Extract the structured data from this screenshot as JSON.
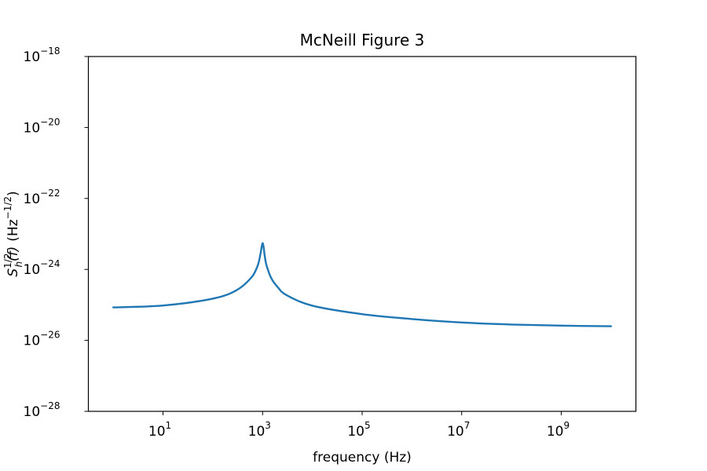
{
  "chart_data": {
    "type": "line",
    "title": "McNeill Figure 3",
    "xlabel": "frequency (Hz)",
    "ylabel_base": "S",
    "ylabel_sub": "h",
    "ylabel_sup": "1/2",
    "ylabel_func": "(f)",
    "ylabel_unit_prefix": "(Hz",
    "ylabel_unit_sup": "−1/2",
    "ylabel_unit_suffix": ")",
    "x_scale": "log",
    "y_scale": "log",
    "xlim_log10": [
      -0.5,
      10.5
    ],
    "ylim_log10": [
      -28,
      -18
    ],
    "x_ticks_log10": [
      1,
      3,
      5,
      7,
      9
    ],
    "y_ticks_log10": [
      -28,
      -26,
      -24,
      -22,
      -20,
      -18
    ],
    "tick_base": "10",
    "grid": false,
    "line_color": "#1f77b4",
    "series": [
      {
        "x": [
          1,
          10,
          100,
          300,
          600,
          800,
          900,
          950,
          1000,
          1050,
          1100,
          1200,
          1500,
          2000,
          3000,
          10000,
          100000,
          1000000,
          10000000,
          100000000,
          1000000000,
          10000000000
        ],
        "y": [
          8.5e-26,
          9.6e-26,
          1.5e-25,
          2.6e-25,
          6e-25,
          1.3e-24,
          2.6e-24,
          4e-24,
          5.5e-24,
          4.2e-24,
          2.5e-24,
          1.3e-24,
          5.6e-25,
          3.2e-25,
          1.9e-25,
          9.5e-26,
          5.5e-26,
          4e-26,
          3.2e-26,
          2.8e-26,
          2.6e-26,
          2.5e-26
        ]
      }
    ]
  }
}
